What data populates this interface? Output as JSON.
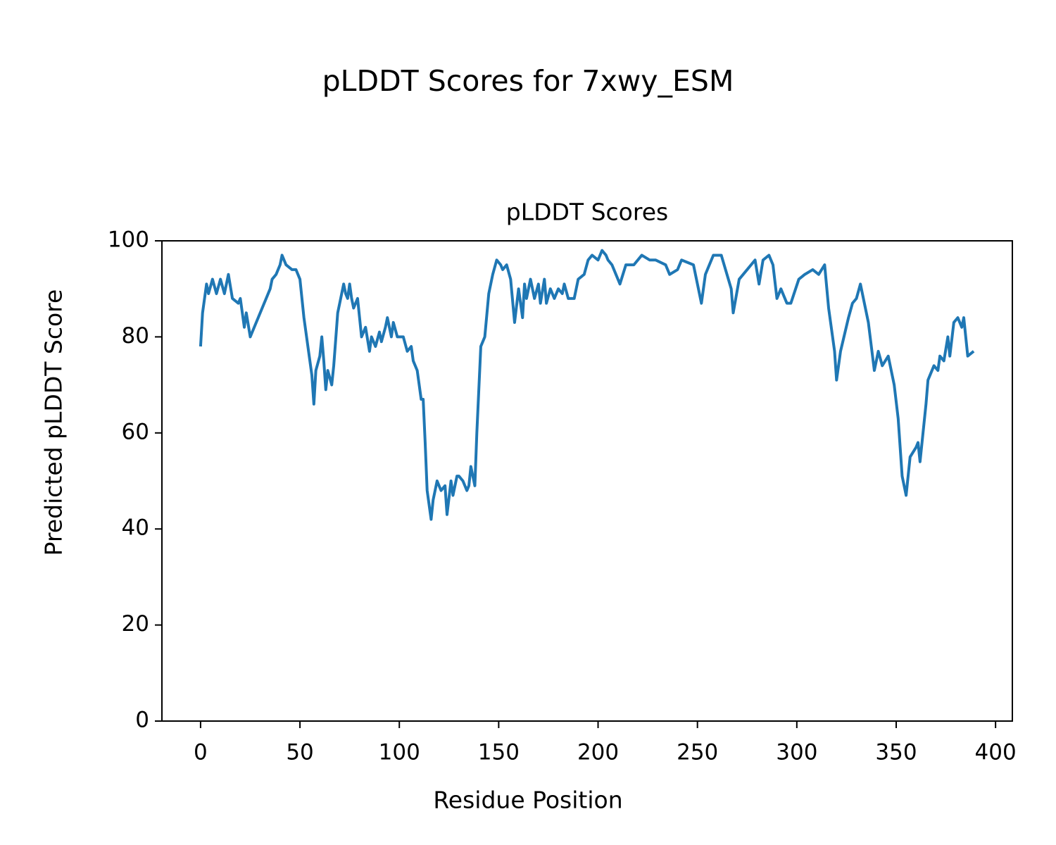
{
  "chart_data": {
    "type": "line",
    "title": "pLDDT Scores for 7xwy_ESM",
    "subtitle": "pLDDT Scores",
    "xlabel": "Residue Position",
    "ylabel": "Predicted pLDDT Score",
    "color": "#1f77b4",
    "xlim": [
      -19.45,
      408.45
    ],
    "ylim": [
      0,
      100
    ],
    "xticks": [
      0,
      50,
      100,
      150,
      200,
      250,
      300,
      350,
      400
    ],
    "yticks": [
      0,
      20,
      40,
      60,
      80,
      100
    ],
    "x": [
      0,
      1,
      3,
      4,
      6,
      8,
      10,
      12,
      14,
      16,
      19,
      20,
      22,
      23,
      25,
      27,
      29,
      31,
      33,
      35,
      36,
      38,
      40,
      41,
      43,
      46,
      48,
      50,
      52,
      54,
      56,
      57,
      58,
      60,
      61,
      62,
      63,
      64,
      66,
      67,
      69,
      70,
      72,
      73,
      74,
      75,
      76,
      77,
      79,
      81,
      83,
      85,
      86,
      88,
      90,
      91,
      93,
      94,
      96,
      97,
      99,
      102,
      104,
      106,
      107,
      109,
      111,
      112,
      113,
      114,
      116,
      117,
      119,
      121,
      123,
      124,
      126,
      127,
      129,
      130,
      132,
      134,
      135,
      136,
      138,
      139,
      141,
      143,
      145,
      147,
      149,
      151,
      152,
      154,
      156,
      158,
      160,
      162,
      163,
      164,
      166,
      168,
      170,
      171,
      173,
      174,
      176,
      178,
      180,
      182,
      183,
      185,
      188,
      190,
      193,
      195,
      197,
      200,
      202,
      204,
      205,
      207,
      209,
      211,
      214,
      218,
      222,
      226,
      229,
      234,
      236,
      240,
      242,
      248,
      252,
      254,
      258,
      262,
      267,
      268,
      271,
      275,
      279,
      281,
      283,
      286,
      288,
      290,
      292,
      295,
      297,
      301,
      304,
      308,
      311,
      314,
      316,
      319,
      320,
      322,
      326,
      328,
      330,
      332,
      334,
      336,
      339,
      341,
      343,
      346,
      349,
      351,
      353,
      355,
      357,
      360,
      361,
      362,
      365,
      366,
      369,
      371,
      372,
      374,
      376,
      377,
      379,
      381,
      383,
      384,
      386,
      389
    ],
    "values": [
      78,
      85,
      91,
      89,
      92,
      89,
      92,
      89,
      93,
      88,
      87,
      88,
      82,
      85,
      80,
      82,
      84,
      86,
      88,
      90,
      92,
      93,
      95,
      97,
      95,
      94,
      94,
      92,
      84,
      78,
      72,
      66,
      73,
      76,
      80,
      75,
      69,
      73,
      70,
      74,
      85,
      87,
      91,
      89,
      88,
      91,
      88,
      86,
      88,
      80,
      82,
      77,
      80,
      78,
      81,
      79,
      82,
      84,
      80,
      83,
      80,
      80,
      77,
      78,
      75,
      73,
      67,
      67,
      58,
      48,
      42,
      46,
      50,
      48,
      49,
      43,
      50,
      47,
      51,
      51,
      50,
      48,
      49,
      53,
      49,
      60,
      78,
      80,
      89,
      93,
      96,
      95,
      94,
      95,
      92,
      83,
      90,
      84,
      91,
      88,
      92,
      88,
      91,
      87,
      92,
      87,
      90,
      88,
      90,
      89,
      91,
      88,
      88,
      92,
      93,
      96,
      97,
      96,
      98,
      97,
      96,
      95,
      93,
      91,
      95,
      95,
      97,
      96,
      96,
      95,
      93,
      94,
      96,
      95,
      87,
      93,
      97,
      97,
      90,
      85,
      92,
      94,
      96,
      91,
      96,
      97,
      95,
      88,
      90,
      87,
      87,
      92,
      93,
      94,
      93,
      95,
      86,
      77,
      71,
      77,
      84,
      87,
      88,
      91,
      87,
      83,
      73,
      77,
      74,
      76,
      70,
      63,
      51,
      47,
      55,
      57,
      58,
      54,
      66,
      71,
      74,
      73,
      76,
      75,
      80,
      76,
      83,
      84,
      82,
      84,
      76,
      77
    ]
  }
}
